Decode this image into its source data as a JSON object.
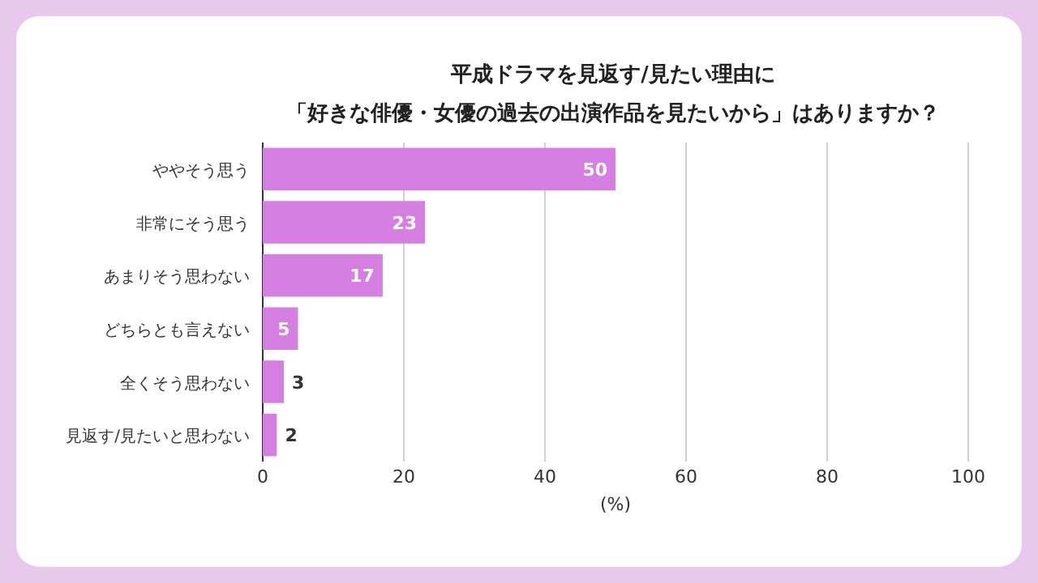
{
  "chart_data": {
    "type": "bar",
    "orientation": "horizontal",
    "title": "平成ドラマを見返す/見たい理由に「好きな俳優・女優の過去の出演作品を見たいから」はありますか？",
    "categories": [
      "ややそう思う",
      "非常にそう思う",
      "あまりそう思わない",
      "どちらとも言えない",
      "全くそう思わない",
      "見返す/見たいと思わない"
    ],
    "values": [
      50,
      23,
      17,
      5,
      3,
      2
    ],
    "color": "#d57fe3",
    "xlim": [
      0,
      100
    ],
    "xticks": [
      0,
      20,
      40,
      60,
      80,
      100
    ],
    "xlabel": "(%)",
    "grid": "x",
    "data_labels": true
  }
}
